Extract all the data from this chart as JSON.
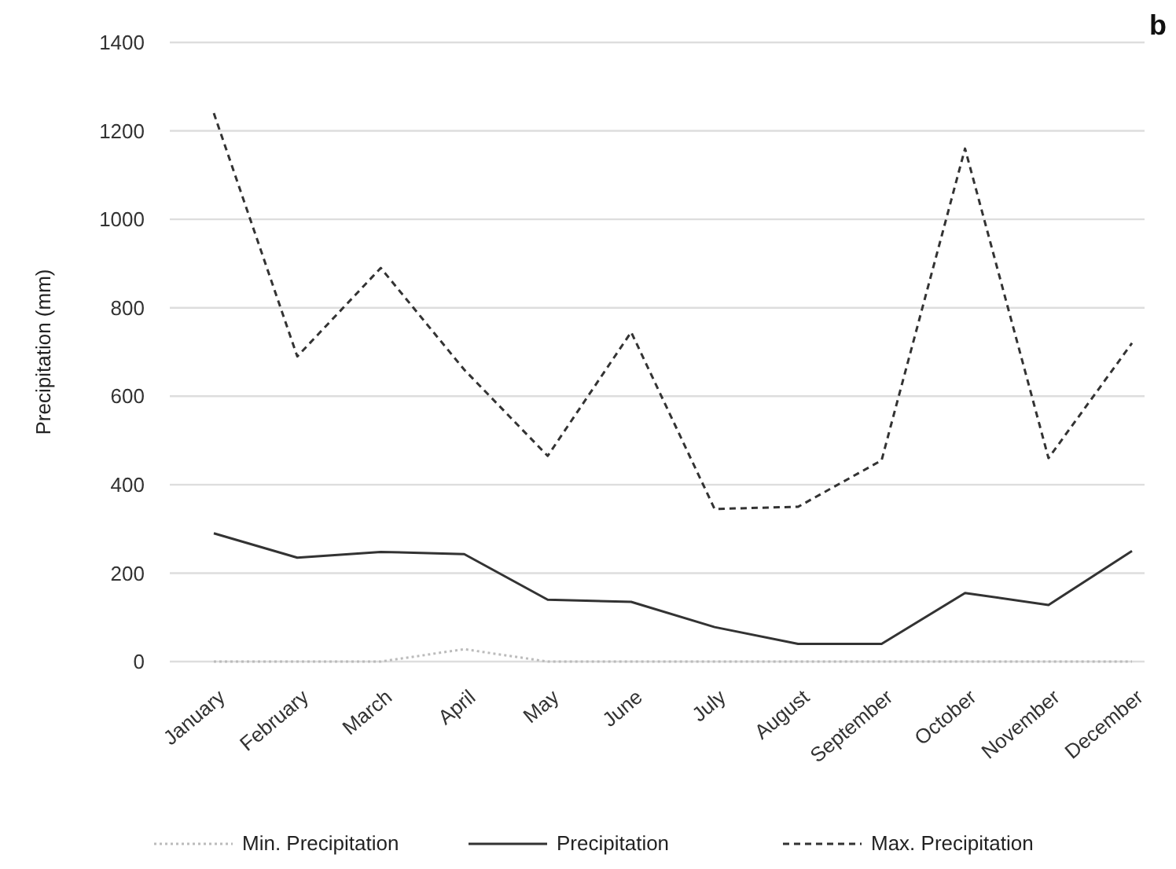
{
  "chart_data": {
    "type": "line",
    "ylabel": "Precipitation (mm)",
    "annotations": [
      "b"
    ],
    "categories": [
      "January",
      "February",
      "March",
      "April",
      "May",
      "June",
      "July",
      "August",
      "September",
      "October",
      "November",
      "December"
    ],
    "series": [
      {
        "name": "Min. Precipitation",
        "color": "#bbbbbb",
        "line_style": "dotted",
        "values": [
          0,
          0,
          0,
          28,
          0,
          0,
          0,
          0,
          0,
          0,
          0,
          0
        ]
      },
      {
        "name": "Precipitation",
        "color": "#333333",
        "line_style": "solid",
        "values": [
          290,
          235,
          248,
          243,
          140,
          135,
          78,
          40,
          40,
          155,
          128,
          250
        ]
      },
      {
        "name": "Max. Precipitation",
        "color": "#333333",
        "line_style": "dashed",
        "values": [
          1240,
          690,
          890,
          660,
          465,
          745,
          345,
          350,
          455,
          1160,
          460,
          720
        ]
      }
    ],
    "ylim": [
      0,
      1400
    ],
    "yticks": [
      0,
      200,
      400,
      600,
      800,
      1000,
      1200,
      1400
    ],
    "grid": "y",
    "legend": "bottom",
    "marker": "none"
  }
}
